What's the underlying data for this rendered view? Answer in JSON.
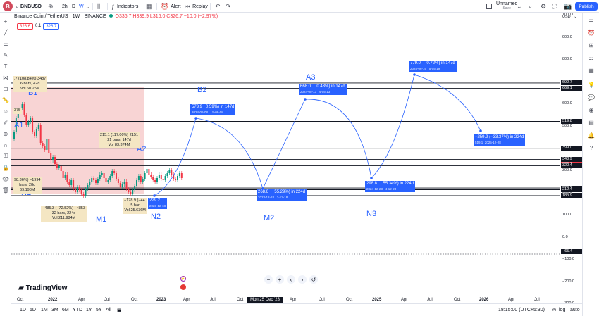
{
  "topbar": {
    "symbol": "BNBUSD",
    "interval_2h": "2h",
    "interval_d": "D",
    "interval_w": "W",
    "indicators": "Indicators",
    "alert": "Alert",
    "replay": "Replay",
    "layout_name": "Unnamed",
    "save": "Save",
    "publish": "Publish"
  },
  "legend": {
    "title": "Binance Coin / TetherUS · 1W · BINANCE",
    "ohlc": "O336.7  H339.9  L316.0  C326.7  −10.0 (−2.97%)",
    "val_red": "326.6",
    "val_mid": "0.1",
    "val_blue": "326.7"
  },
  "currency": "USDT",
  "price_axis": {
    "labels": [
      "1000.0",
      "900.0",
      "800.0",
      "700.0",
      "600.0",
      "500.0",
      "400.0",
      "300.0",
      "200.0",
      "100.0",
      "0.0",
      "−100.0",
      "−200.0",
      "−300.0"
    ],
    "tags": [
      "692.7",
      "669.1",
      "519.8",
      "399.0",
      "348.9",
      "326.7",
      "320.4",
      "220.2",
      "212.4",
      "185.6",
      "183.9",
      "−65.4"
    ],
    "tag_sub": "11:17:00"
  },
  "time_axis": {
    "labels": [
      "Oct",
      "2022",
      "Apr",
      "Jul",
      "Oct",
      "2023",
      "Apr",
      "Jul",
      "Oct",
      "Apr",
      "Jul",
      "Oct",
      "2025",
      "Apr",
      "Jul",
      "Oct",
      "2026",
      "Apr",
      "Jul"
    ],
    "crosshair": "Mon 25 Dec '23"
  },
  "annotations": {
    "labels": [
      "B1",
      "A1",
      "B2",
      "A2",
      "A3",
      "N1",
      "M1",
      "N2",
      "M2",
      "N3"
    ],
    "blue_boxes": [
      {
        "main": "573.9",
        "pct": "0.59%) in 147d",
        "sub": "2024-06-08",
        "sub2": "5-06-08"
      },
      {
        "main": "668.0",
        "pct": "0.43%) in 147d",
        "sub": "2024-05-13",
        "sub2": "4-05-13"
      },
      {
        "main": "779.0",
        "pct": "0.72%) in 147d",
        "sub": "2025-06-16",
        "sub2": "5-05-19"
      },
      {
        "main": "268.6",
        "pct": "55.29%) in 224d",
        "sub": "2023-12-18",
        "sub2": "3-12-18"
      },
      {
        "main": "298.8",
        "pct": "55.34%) in 224d",
        "sub": "2024-12-23",
        "sub2": "4-12-23"
      },
      {
        "main": "−259.9 (−33.37%) in 224d",
        "pct": "",
        "sub": "519.1",
        "sub2": "2025-12-28"
      },
      {
        "main": "229.2",
        "pct": "",
        "sub": "2023-12-18",
        "sub2": ""
      }
    ],
    "tan_boxes": [
      {
        "l1": ".7 (108.84%) 3487",
        "l2": "6 bars, 42d",
        "l3": "Vol 60.25M"
      },
      {
        "l1": "375",
        "l2": "",
        "l3": ""
      },
      {
        "l1": "215.1 (117.00%) 2151",
        "l2": "21 bars, 147d",
        "l3": "Vol 83.374M"
      },
      {
        "l1": "98.36%) −1994",
        "l2": "bars, 28d",
        "l3": "69.198M"
      },
      {
        "l1": "−485.3 (−72.52%) −4853",
        "l2": "32 bars, 224d",
        "l3": "Vol 211.984M"
      },
      {
        "l1": "−178.9 (−44.",
        "l2": "5 bar",
        "l3": "Vol 25.636M"
      }
    ]
  },
  "bottombar": {
    "ranges": [
      "1D",
      "5D",
      "1M",
      "3M",
      "6M",
      "YTD",
      "1Y",
      "5Y",
      "All"
    ],
    "time": "18:15:00 (UTC+5:30)",
    "pct": "%",
    "log": "log",
    "auto": "auto"
  },
  "brand": "TradingView",
  "colors": {
    "accent": "#2962ff",
    "down": "#f23645",
    "up": "#089981",
    "zone": "#f6c6c6",
    "tan": "#f4e6c3"
  }
}
